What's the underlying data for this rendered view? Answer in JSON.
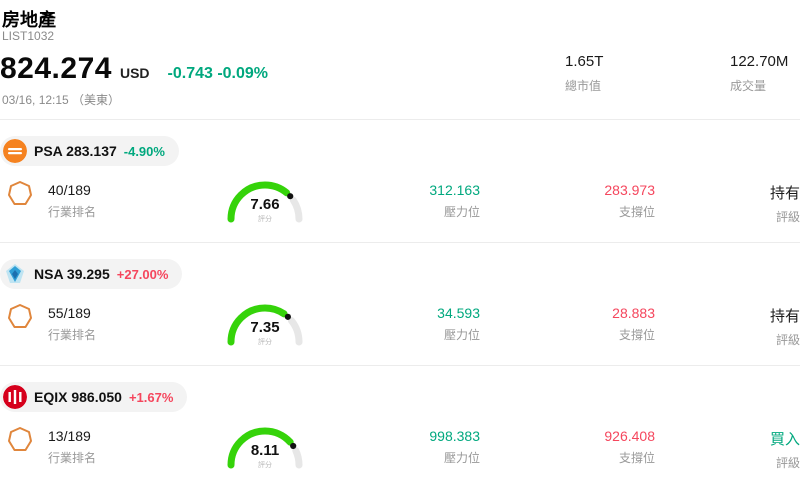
{
  "header": {
    "title": "房地產",
    "list_id": "LIST1032",
    "price": "824.274",
    "currency": "USD",
    "change": "-0.743 -0.09%",
    "change_color": "#00a87e",
    "datetime": "03/16, 12:15 （美東）",
    "stats": [
      {
        "value": "1.65T",
        "label": "總市值"
      },
      {
        "value": "122.70M",
        "label": "成交量"
      }
    ]
  },
  "colors": {
    "up": "#f5465d",
    "down": "#00a87e",
    "resistance_text": "#00a87e",
    "support_text": "#f5465d",
    "gauge_green": "#35d30a",
    "gauge_rest": "#e7e7e7",
    "shield_stroke": "#e0863c"
  },
  "sections": [
    {
      "logo_icon": "psa-logo",
      "logo_color": "#f58220",
      "ticker_price": "PSA 283.137",
      "change": "-4.90%",
      "change_color": "#00a87e",
      "rank": "40/189",
      "rank_label": "行業排名",
      "score": 7.66,
      "score_label": "評分",
      "resistance": "312.163",
      "resistance_label": "壓力位",
      "support": "283.973",
      "support_label": "支撐位",
      "rating": "持有",
      "rating_color": "#1a1a1a",
      "rating_label": "評級"
    },
    {
      "logo_icon": "nsa-logo",
      "logo_color": "#2f9fd6",
      "ticker_price": "NSA 39.295",
      "change": "+27.00%",
      "change_color": "#f5465d",
      "rank": "55/189",
      "rank_label": "行業排名",
      "score": 7.35,
      "score_label": "評分",
      "resistance": "34.593",
      "resistance_label": "壓力位",
      "support": "28.883",
      "support_label": "支撐位",
      "rating": "持有",
      "rating_color": "#1a1a1a",
      "rating_label": "評級"
    },
    {
      "logo_icon": "eqix-logo",
      "logo_color": "#d6001c",
      "ticker_price": "EQIX 986.050",
      "change": "+1.67%",
      "change_color": "#f5465d",
      "rank": "13/189",
      "rank_label": "行業排名",
      "score": 8.11,
      "score_label": "評分",
      "resistance": "998.383",
      "resistance_label": "壓力位",
      "support": "926.408",
      "support_label": "支撐位",
      "rating": "買入",
      "rating_color": "#00a87e",
      "rating_label": "評級"
    }
  ]
}
